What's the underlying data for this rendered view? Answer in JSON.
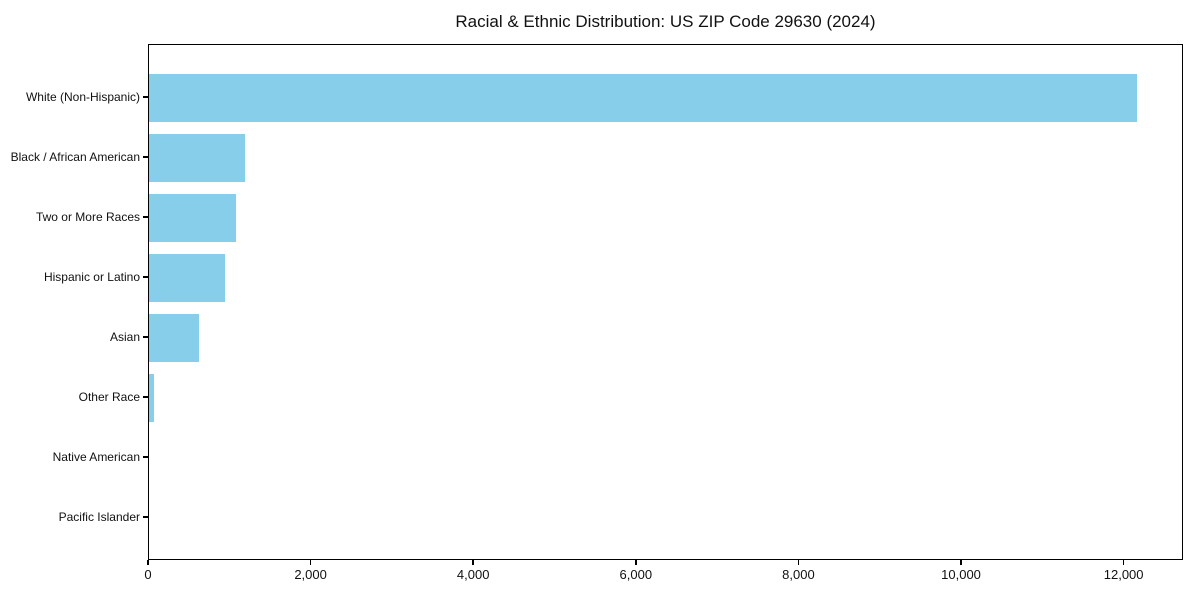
{
  "chart_data": {
    "type": "bar",
    "orientation": "horizontal",
    "title": "Racial & Ethnic Distribution: US ZIP Code 29630 (2024)",
    "categories": [
      "White (Non-Hispanic)",
      "Black / African American",
      "Two or More Races",
      "Hispanic or Latino",
      "Asian",
      "Other Race",
      "Native American",
      "Pacific Islander"
    ],
    "values": [
      12150,
      1180,
      1070,
      930,
      620,
      60,
      0,
      0
    ],
    "xlabel": "",
    "ylabel": "",
    "xlim": [
      0,
      12730
    ],
    "xticks": [
      0,
      2000,
      4000,
      6000,
      8000,
      10000,
      12000
    ],
    "xtick_labels": [
      "0",
      "2,000",
      "4,000",
      "6,000",
      "8,000",
      "10,000",
      "12,000"
    ],
    "bar_color": "#87CEEB",
    "spine_color": "#000000",
    "grid": false,
    "legend": "none"
  }
}
